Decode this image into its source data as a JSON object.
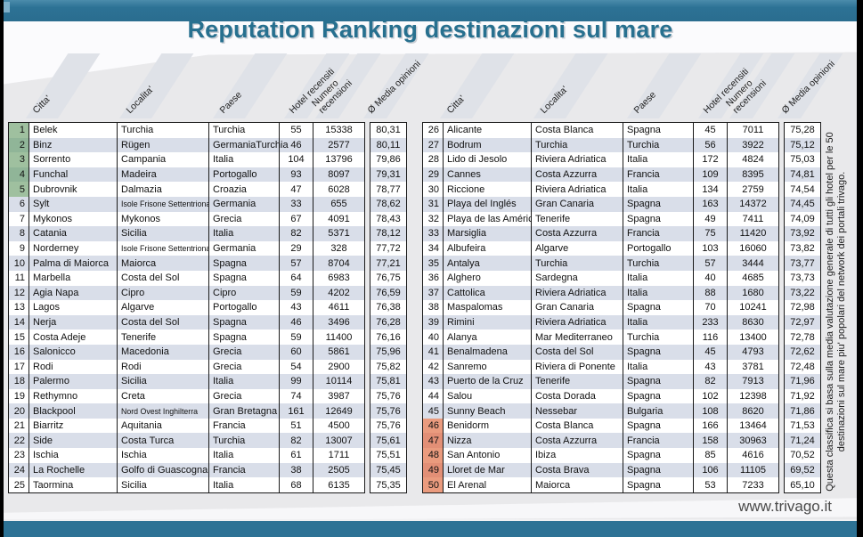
{
  "title": "Reputation Ranking destinazioni sul mare",
  "columns": [
    "Citta'",
    "Localita'",
    "Paese",
    "Hotel recensiti",
    "Numero recensioni",
    "Ø Media opinioni"
  ],
  "side_note": "Questa classifica si basa sulla media valutazione generale di tutti gli hotel per le 50 destinazioni sul mare piu' popolari del network dei portali trivago.",
  "footer": {
    "website": "www.trivago.it"
  },
  "colors": {
    "accent": "#2d7295",
    "title": "#27708f",
    "page": "#e9e9eb",
    "row_alt": "#d9dee9",
    "top5": "#9fc09f",
    "top5_alt": "#90b598",
    "bottom5": "#ea9b7e",
    "bottom5_alt": "#e28f76"
  },
  "rows": [
    {
      "rank": 1,
      "city": "Belek",
      "locality": "Turchia",
      "country": "Turchia",
      "hotels": 55,
      "reviews": 15338,
      "rating": "80,31"
    },
    {
      "rank": 2,
      "city": "Binz",
      "locality": "Rügen",
      "country": "GermaniaTurchia",
      "hotels": 46,
      "reviews": 2577,
      "rating": "80,11"
    },
    {
      "rank": 3,
      "city": "Sorrento",
      "locality": "Campania",
      "country": "Italia",
      "hotels": 104,
      "reviews": 13796,
      "rating": "79,86"
    },
    {
      "rank": 4,
      "city": "Funchal",
      "locality": "Madeira",
      "country": "Portogallo",
      "hotels": 93,
      "reviews": 8097,
      "rating": "79,31"
    },
    {
      "rank": 5,
      "city": "Dubrovnik",
      "locality": "Dalmazia",
      "country": "Croazia",
      "hotels": 47,
      "reviews": 6028,
      "rating": "78,77"
    },
    {
      "rank": 6,
      "city": "Sylt",
      "locality": "Isole Frisone Settentrionali",
      "country": "Germania",
      "hotels": 33,
      "reviews": 655,
      "rating": "78,62"
    },
    {
      "rank": 7,
      "city": "Mykonos",
      "locality": "Mykonos",
      "country": "Grecia",
      "hotels": 67,
      "reviews": 4091,
      "rating": "78,43"
    },
    {
      "rank": 8,
      "city": "Catania",
      "locality": "Sicilia",
      "country": "Italia",
      "hotels": 82,
      "reviews": 5371,
      "rating": "78,12"
    },
    {
      "rank": 9,
      "city": "Norderney",
      "locality": "Isole Frisone Settentrionali",
      "country": "Germania",
      "hotels": 29,
      "reviews": 328,
      "rating": "77,72"
    },
    {
      "rank": 10,
      "city": "Palma di Maiorca",
      "locality": "Maiorca",
      "country": "Spagna",
      "hotels": 57,
      "reviews": 8704,
      "rating": "77,21"
    },
    {
      "rank": 11,
      "city": "Marbella",
      "locality": "Costa del Sol",
      "country": "Spagna",
      "hotels": 64,
      "reviews": 6983,
      "rating": "76,75"
    },
    {
      "rank": 12,
      "city": "Agia Napa",
      "locality": "Cipro",
      "country": "Cipro",
      "hotels": 59,
      "reviews": 4202,
      "rating": "76,59"
    },
    {
      "rank": 13,
      "city": "Lagos",
      "locality": "Algarve",
      "country": "Portogallo",
      "hotels": 43,
      "reviews": 4611,
      "rating": "76,38"
    },
    {
      "rank": 14,
      "city": "Nerja",
      "locality": "Costa del Sol",
      "country": "Spagna",
      "hotels": 46,
      "reviews": 3496,
      "rating": "76,28"
    },
    {
      "rank": 15,
      "city": "Costa Adeje",
      "locality": "Tenerife",
      "country": "Spagna",
      "hotels": 59,
      "reviews": 11400,
      "rating": "76,16"
    },
    {
      "rank": 16,
      "city": "Salonicco",
      "locality": "Macedonia",
      "country": "Grecia",
      "hotels": 60,
      "reviews": 5861,
      "rating": "75,96"
    },
    {
      "rank": 17,
      "city": "Rodi",
      "locality": "Rodi",
      "country": "Grecia",
      "hotels": 54,
      "reviews": 2900,
      "rating": "75,82"
    },
    {
      "rank": 18,
      "city": "Palermo",
      "locality": "Sicilia",
      "country": "Italia",
      "hotels": 99,
      "reviews": 10114,
      "rating": "75,81"
    },
    {
      "rank": 19,
      "city": "Rethymno",
      "locality": "Creta",
      "country": "Grecia",
      "hotels": 74,
      "reviews": 3987,
      "rating": "75,76"
    },
    {
      "rank": 20,
      "city": "Blackpool",
      "locality": "Nord Ovest Inghilterra",
      "country": "Gran Bretagna",
      "hotels": 161,
      "reviews": 12649,
      "rating": "75,76"
    },
    {
      "rank": 21,
      "city": "Biarritz",
      "locality": "Aquitania",
      "country": "Francia",
      "hotels": 51,
      "reviews": 4500,
      "rating": "75,76"
    },
    {
      "rank": 22,
      "city": "Side",
      "locality": "Costa Turca",
      "country": "Turchia",
      "hotels": 82,
      "reviews": 13007,
      "rating": "75,61"
    },
    {
      "rank": 23,
      "city": "Ischia",
      "locality": "Ischia",
      "country": "Italia",
      "hotels": 61,
      "reviews": 1711,
      "rating": "75,51"
    },
    {
      "rank": 24,
      "city": "La Rochelle",
      "locality": "Golfo di Guascogna",
      "country": "Francia",
      "hotels": 38,
      "reviews": 2505,
      "rating": "75,45"
    },
    {
      "rank": 25,
      "city": "Taormina",
      "locality": "Sicilia",
      "country": "Italia",
      "hotels": 68,
      "reviews": 6135,
      "rating": "75,35"
    },
    {
      "rank": 26,
      "city": "Alicante",
      "locality": "Costa Blanca",
      "country": "Spagna",
      "hotels": 45,
      "reviews": 7011,
      "rating": "75,28"
    },
    {
      "rank": 27,
      "city": "Bodrum",
      "locality": "Turchia",
      "country": "Turchia",
      "hotels": 56,
      "reviews": 3922,
      "rating": "75,12"
    },
    {
      "rank": 28,
      "city": "Lido di Jesolo",
      "locality": "Riviera Adriatica",
      "country": "Italia",
      "hotels": 172,
      "reviews": 4824,
      "rating": "75,03"
    },
    {
      "rank": 29,
      "city": "Cannes",
      "locality": "Costa Azzurra",
      "country": "Francia",
      "hotels": 109,
      "reviews": 8395,
      "rating": "74,81"
    },
    {
      "rank": 30,
      "city": "Riccione",
      "locality": "Riviera Adriatica",
      "country": "Italia",
      "hotels": 134,
      "reviews": 2759,
      "rating": "74,54"
    },
    {
      "rank": 31,
      "city": "Playa del Inglés",
      "locality": "Gran Canaria",
      "country": "Spagna",
      "hotels": 163,
      "reviews": 14372,
      "rating": "74,45"
    },
    {
      "rank": 32,
      "city": "Playa de las Américas",
      "locality": "Tenerife",
      "country": "Spagna",
      "hotels": 49,
      "reviews": 7411,
      "rating": "74,09"
    },
    {
      "rank": 33,
      "city": "Marsiglia",
      "locality": "Costa Azzurra",
      "country": "Francia",
      "hotels": 75,
      "reviews": 11420,
      "rating": "73,92"
    },
    {
      "rank": 34,
      "city": "Albufeira",
      "locality": "Algarve",
      "country": "Portogallo",
      "hotels": 103,
      "reviews": 16060,
      "rating": "73,82"
    },
    {
      "rank": 35,
      "city": "Antalya",
      "locality": "Turchia",
      "country": "Turchia",
      "hotels": 57,
      "reviews": 3444,
      "rating": "73,77"
    },
    {
      "rank": 36,
      "city": "Alghero",
      "locality": "Sardegna",
      "country": "Italia",
      "hotels": 40,
      "reviews": 4685,
      "rating": "73,73"
    },
    {
      "rank": 37,
      "city": "Cattolica",
      "locality": "Riviera Adriatica",
      "country": "Italia",
      "hotels": 88,
      "reviews": 1680,
      "rating": "73,22"
    },
    {
      "rank": 38,
      "city": "Maspalomas",
      "locality": "Gran Canaria",
      "country": "Spagna",
      "hotels": 70,
      "reviews": 10241,
      "rating": "72,98"
    },
    {
      "rank": 39,
      "city": "Rimini",
      "locality": "Riviera Adriatica",
      "country": "Italia",
      "hotels": 233,
      "reviews": 8630,
      "rating": "72,97"
    },
    {
      "rank": 40,
      "city": "Alanya",
      "locality": "Mar Mediterraneo",
      "country": "Turchia",
      "hotels": 116,
      "reviews": 13400,
      "rating": "72,78"
    },
    {
      "rank": 41,
      "city": "Benalmadena",
      "locality": "Costa del Sol",
      "country": "Spagna",
      "hotels": 45,
      "reviews": 4793,
      "rating": "72,62"
    },
    {
      "rank": 42,
      "city": "Sanremo",
      "locality": "Riviera di Ponente",
      "country": "Italia",
      "hotels": 43,
      "reviews": 3781,
      "rating": "72,48"
    },
    {
      "rank": 43,
      "city": "Puerto de la Cruz",
      "locality": "Tenerife",
      "country": "Spagna",
      "hotels": 82,
      "reviews": 7913,
      "rating": "71,96"
    },
    {
      "rank": 44,
      "city": "Salou",
      "locality": "Costa Dorada",
      "country": "Spagna",
      "hotels": 102,
      "reviews": 12398,
      "rating": "71,92"
    },
    {
      "rank": 45,
      "city": "Sunny Beach",
      "locality": "Nessebar",
      "country": "Bulgaria",
      "hotels": 108,
      "reviews": 8620,
      "rating": "71,86"
    },
    {
      "rank": 46,
      "city": "Benidorm",
      "locality": "Costa Blanca",
      "country": "Spagna",
      "hotels": 166,
      "reviews": 13464,
      "rating": "71,53"
    },
    {
      "rank": 47,
      "city": "Nizza",
      "locality": "Costa Azzurra",
      "country": "Francia",
      "hotels": 158,
      "reviews": 30963,
      "rating": "71,24"
    },
    {
      "rank": 48,
      "city": "San Antonio",
      "locality": "Ibiza",
      "country": "Spagna",
      "hotels": 85,
      "reviews": 4616,
      "rating": "70,52"
    },
    {
      "rank": 49,
      "city": "Lloret de Mar",
      "locality": "Costa Brava",
      "country": "Spagna",
      "hotels": 106,
      "reviews": 11105,
      "rating": "69,52"
    },
    {
      "rank": 50,
      "city": "El Arenal",
      "locality": "Maiorca",
      "country": "Spagna",
      "hotels": 53,
      "reviews": 7233,
      "rating": "65,10"
    }
  ]
}
